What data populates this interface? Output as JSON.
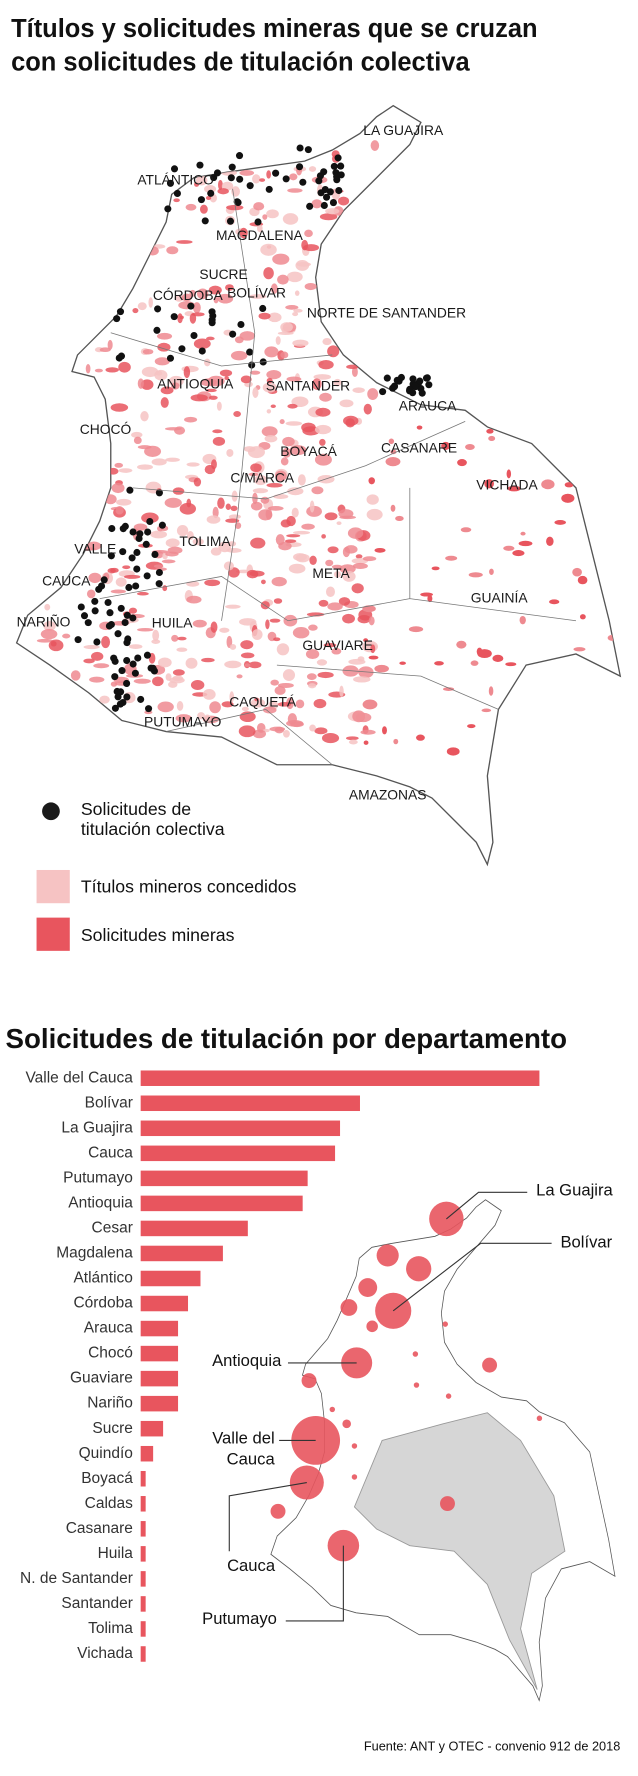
{
  "map": {
    "title": [
      "Títulos y solicitudes mineras que se cruzan",
      "con solicitudes de titulación colectiva"
    ],
    "labels": [
      "LA GUAJIRA",
      "ATLÁNTICO",
      "MAGDALENA",
      "SUCRE",
      "CÓRDOBA",
      "BOLÍVAR",
      "NORTE DE SANTANDER",
      "ANTIOQUIA",
      "SANTANDER",
      "ARAUCA",
      "CHOCÓ",
      "BOYACÁ",
      "CASANARE",
      "C/MARCA",
      "VICHADA",
      "TOLIMA",
      "VALLE",
      "META",
      "CAUCA",
      "GUAINÍA",
      "NARIÑO",
      "HUILA",
      "GUAVIARE",
      "CAQUETÁ",
      "PUTUMAYO",
      "AMAZONAS"
    ],
    "legend": [
      {
        "lines": [
          "Solicitudes de",
          "titulación colectiva"
        ],
        "color": "#1a1a1a"
      },
      {
        "lines": [
          "Títulos mineros concedidos"
        ],
        "color": "#f6c3c3"
      },
      {
        "lines": [
          "Solicitudes mineras"
        ],
        "color": "#e8555e"
      }
    ]
  },
  "chart_data": {
    "type": "bar",
    "orientation": "horizontal",
    "title": "Solicitudes de titulación por departamento",
    "categories": [
      "Valle del Cauca",
      "Bolívar",
      "La Guajira",
      "Cauca",
      "Putumayo",
      "Antioquia",
      "Cesar",
      "Magdalena",
      "Atlántico",
      "Córdoba",
      "Arauca",
      "Chocó",
      "Guaviare",
      "Nariño",
      "Sucre",
      "Quindío",
      "Boyacá",
      "Caldas",
      "Casanare",
      "Huila",
      "N. de Santander",
      "Santander",
      "Tolima",
      "Vichada"
    ],
    "values": [
      160,
      88,
      80,
      78,
      67,
      65,
      43,
      33,
      24,
      19,
      15,
      15,
      15,
      15,
      9,
      5,
      2,
      2,
      2,
      2,
      2,
      2,
      2,
      2
    ],
    "color": "#e8555e",
    "callouts": [
      {
        "lines": [
          "La Guajira"
        ]
      },
      {
        "lines": [
          "Bolívar"
        ]
      },
      {
        "lines": [
          "Antioquia"
        ]
      },
      {
        "lines": [
          "Valle del",
          "Cauca"
        ]
      },
      {
        "lines": [
          "Cauca"
        ]
      },
      {
        "lines": [
          "Putumayo"
        ]
      }
    ]
  },
  "source": "Fuente: ANT y OTEC - convenio 912 de 2018"
}
